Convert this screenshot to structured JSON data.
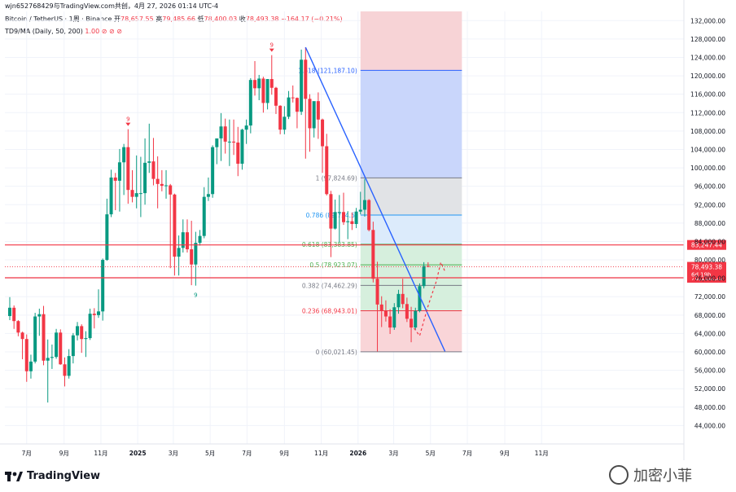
{
  "header": {
    "top_line": "wjn652768429与TradingView.com共创，4月 27, 2026 01:14 UTC-4",
    "symbol": "Bitcoin / TetherUS · 1周 · Binance",
    "open_label": "开",
    "open": "78,657.55",
    "high_label": "高",
    "high": "79,485.66",
    "low_label": "低",
    "low": "78,400.03",
    "close_label": "收",
    "close": "78,493.38",
    "change": "−164.17 (−0.21%)",
    "indicator": "TD9/MA (Daily, 50, 200)",
    "indicator_values": "1.00 ⊘ ⊘ ⊘"
  },
  "brand": {
    "logo_text": "TradingView",
    "watermark": "加密小菲"
  },
  "colors": {
    "up": "#089981",
    "down": "#f23645",
    "trend": "#2962ff",
    "level_line": "#f23645",
    "fib_top_zone": "#f7d3d6",
    "fib_blue_zone": "#c9d6fb",
    "fib_gray_zone": "#e1e3e6",
    "fib_light_blue": "#dcebfb",
    "fib_green_zone": "#d6efdd",
    "fib_red_zone": "#f9d5d8"
  },
  "chart_data": {
    "type": "candlestick",
    "timeframe": "1W",
    "y_axis": {
      "ylim": [
        40000,
        134000
      ],
      "ticks": [
        "44,000.00",
        "48,000.00",
        "52,000.00",
        "56,000.00",
        "60,000.00",
        "64,000.00",
        "68,000.00",
        "72,000.00",
        "76,000.00",
        "80,000.00",
        "84,000.00",
        "88,000.00",
        "92,000.00",
        "96,000.00",
        "100,000.00",
        "104,000.00",
        "108,000.00",
        "112,000.00",
        "116,000.00",
        "120,000.00",
        "124,000.00",
        "128,000.00",
        "132,000.00"
      ],
      "tick_values": [
        44000,
        48000,
        52000,
        56000,
        60000,
        64000,
        68000,
        72000,
        76000,
        80000,
        84000,
        88000,
        92000,
        96000,
        100000,
        104000,
        108000,
        112000,
        116000,
        120000,
        124000,
        128000,
        132000
      ]
    },
    "x_axis": {
      "ticks": [
        "7月",
        "9月",
        "11月",
        "2025",
        "3月",
        "5月",
        "7月",
        "9月",
        "11月",
        "2026",
        "3月",
        "5月",
        "7月",
        "9月",
        "11月"
      ],
      "tick_dates": [
        "2024-07-01",
        "2024-09-01",
        "2024-11-01",
        "2025-01-01",
        "2025-03-01",
        "2025-05-01",
        "2025-07-01",
        "2025-09-01",
        "2025-11-01",
        "2026-01-01",
        "2026-03-01",
        "2026-05-01",
        "2026-07-01",
        "2026-09-01",
        "2026-11-01"
      ]
    },
    "candles": [
      [
        "2024-06-03",
        67800,
        71900,
        66900,
        69600
      ],
      [
        "2024-06-10",
        69600,
        70100,
        65000,
        66700
      ],
      [
        "2024-06-17",
        66700,
        66900,
        63400,
        64200
      ],
      [
        "2024-06-24",
        64200,
        64400,
        58400,
        62800
      ],
      [
        "2024-07-01",
        62800,
        63800,
        53500,
        55800
      ],
      [
        "2024-07-08",
        55800,
        59400,
        54200,
        57900
      ],
      [
        "2024-07-15",
        57900,
        68500,
        57500,
        67700
      ],
      [
        "2024-07-22",
        67700,
        69400,
        63500,
        68200
      ],
      [
        "2024-07-29",
        68200,
        70000,
        57100,
        58100
      ],
      [
        "2024-08-05",
        58100,
        62700,
        49000,
        58700
      ],
      [
        "2024-08-12",
        58700,
        61600,
        56300,
        58900
      ],
      [
        "2024-08-19",
        58900,
        65000,
        58500,
        64200
      ],
      [
        "2024-08-26",
        64200,
        64900,
        57200,
        57300
      ],
      [
        "2024-09-02",
        57300,
        58800,
        52500,
        54800
      ],
      [
        "2024-09-09",
        54800,
        60600,
        54200,
        59100
      ],
      [
        "2024-09-16",
        59100,
        64100,
        57500,
        63600
      ],
      [
        "2024-09-23",
        63600,
        66500,
        62500,
        65600
      ],
      [
        "2024-09-30",
        65600,
        66000,
        59800,
        62800
      ],
      [
        "2024-10-07",
        62800,
        64500,
        58900,
        63000
      ],
      [
        "2024-10-14",
        63000,
        69400,
        62600,
        68300
      ],
      [
        "2024-10-21",
        68300,
        69500,
        65100,
        68000
      ],
      [
        "2024-10-28",
        68000,
        73600,
        67400,
        68800
      ],
      [
        "2024-11-04",
        68800,
        80300,
        66800,
        80000
      ],
      [
        "2024-11-11",
        80000,
        93300,
        79800,
        89900
      ],
      [
        "2024-11-18",
        89900,
        99600,
        89300,
        97900
      ],
      [
        "2024-11-25",
        97900,
        98900,
        90800,
        97200
      ],
      [
        "2024-12-02",
        97200,
        104100,
        90500,
        101200
      ],
      [
        "2024-12-09",
        101200,
        105200,
        94100,
        104500
      ],
      [
        "2024-12-16",
        104500,
        108400,
        92200,
        95200
      ],
      [
        "2024-12-23",
        95200,
        99500,
        92500,
        93700
      ],
      [
        "2024-12-30",
        93700,
        102700,
        91200,
        94500
      ],
      [
        "2025-01-06",
        94500,
        102400,
        89300,
        94500
      ],
      [
        "2025-01-13",
        94500,
        106400,
        92000,
        101100
      ],
      [
        "2025-01-20",
        101100,
        109600,
        98900,
        101400
      ],
      [
        "2025-01-27",
        101400,
        106500,
        96200,
        97600
      ],
      [
        "2025-02-03",
        97600,
        102500,
        91200,
        96500
      ],
      [
        "2025-02-10",
        96500,
        99500,
        94900,
        96100
      ],
      [
        "2025-02-17",
        96100,
        99500,
        93300,
        96200
      ],
      [
        "2025-02-24",
        96200,
        96500,
        78200,
        94200
      ],
      [
        "2025-03-03",
        94200,
        94400,
        76600,
        80700
      ],
      [
        "2025-03-10",
        80700,
        85300,
        76600,
        82600
      ],
      [
        "2025-03-17",
        82600,
        88800,
        81600,
        86000
      ],
      [
        "2025-03-24",
        86000,
        88800,
        81600,
        82300
      ],
      [
        "2025-03-31",
        82300,
        88500,
        74500,
        79000
      ],
      [
        "2025-04-07",
        79000,
        86100,
        74400,
        83700
      ],
      [
        "2025-04-14",
        83700,
        86500,
        83100,
        85200
      ],
      [
        "2025-04-21",
        85200,
        95800,
        84700,
        93700
      ],
      [
        "2025-04-28",
        93700,
        97900,
        92800,
        94300
      ],
      [
        "2025-05-05",
        94300,
        104900,
        93500,
        104500
      ],
      [
        "2025-05-12",
        104500,
        105800,
        100800,
        106400
      ],
      [
        "2025-05-19",
        106400,
        111900,
        101500,
        109000
      ],
      [
        "2025-05-26",
        109000,
        110700,
        103100,
        105700
      ],
      [
        "2025-06-02",
        105700,
        110500,
        100400,
        105700
      ],
      [
        "2025-06-09",
        105700,
        110500,
        102800,
        105500
      ],
      [
        "2025-06-16",
        105500,
        108900,
        98200,
        100900
      ],
      [
        "2025-06-23",
        100900,
        108500,
        99600,
        108300
      ],
      [
        "2025-06-30",
        108300,
        110500,
        105200,
        109200
      ],
      [
        "2025-07-07",
        109200,
        119500,
        107500,
        119100
      ],
      [
        "2025-07-14",
        119100,
        123200,
        115700,
        117300
      ],
      [
        "2025-07-21",
        117300,
        120200,
        114700,
        119400
      ],
      [
        "2025-07-28",
        119400,
        119800,
        112000,
        114100
      ],
      [
        "2025-08-04",
        114100,
        119300,
        112700,
        119300
      ],
      [
        "2025-08-11",
        119300,
        124500,
        115900,
        117400
      ],
      [
        "2025-08-18",
        117400,
        117600,
        111700,
        113500
      ],
      [
        "2025-08-25",
        113500,
        113600,
        107300,
        108300
      ],
      [
        "2025-09-01",
        108300,
        113400,
        107300,
        111100
      ],
      [
        "2025-09-08",
        111100,
        116700,
        110600,
        115300
      ],
      [
        "2025-09-15",
        115300,
        117900,
        114200,
        115200
      ],
      [
        "2025-09-22",
        115200,
        115300,
        108600,
        112200
      ],
      [
        "2025-09-29",
        112200,
        125700,
        111500,
        123500
      ],
      [
        "2025-10-06",
        123500,
        126200,
        102000,
        115000
      ],
      [
        "2025-10-13",
        115000,
        116000,
        103500,
        108600
      ],
      [
        "2025-10-20",
        108600,
        114000,
        106600,
        114500
      ],
      [
        "2025-10-27",
        114500,
        116400,
        106300,
        110500
      ],
      [
        "2025-11-03",
        110500,
        110700,
        98900,
        104700
      ],
      [
        "2025-11-10",
        104700,
        107400,
        94000,
        94300
      ],
      [
        "2025-11-17",
        94300,
        95000,
        80600,
        86800
      ],
      [
        "2025-11-24",
        86800,
        93100,
        86600,
        90400
      ],
      [
        "2025-12-01",
        90400,
        94100,
        83800,
        90400
      ],
      [
        "2025-12-08",
        90400,
        94600,
        87600,
        88200
      ],
      [
        "2025-12-15",
        88200,
        90600,
        84500,
        88400
      ],
      [
        "2025-12-22",
        88400,
        90300,
        86500,
        87800
      ],
      [
        "2025-12-29",
        87800,
        91300,
        86900,
        90500
      ],
      [
        "2026-01-05",
        90500,
        94800,
        89900,
        90900
      ],
      [
        "2026-01-12",
        90900,
        97600,
        89400,
        93000
      ],
      [
        "2026-01-19",
        93000,
        93200,
        86200,
        86500
      ],
      [
        "2026-01-26",
        86500,
        88300,
        75100,
        75900
      ],
      [
        "2026-02-02",
        75900,
        79600,
        60100,
        70300
      ],
      [
        "2026-02-09",
        70300,
        72100,
        65400,
        68900
      ],
      [
        "2026-02-16",
        68900,
        71200,
        66600,
        67700
      ],
      [
        "2026-02-23",
        67700,
        69300,
        63900,
        65300
      ],
      [
        "2026-03-02",
        65300,
        70600,
        64800,
        69700
      ],
      [
        "2026-03-09",
        69700,
        73500,
        68300,
        72600
      ],
      [
        "2026-03-16",
        72600,
        75900,
        69500,
        70400
      ],
      [
        "2026-03-23",
        70400,
        71800,
        66500,
        67200
      ],
      [
        "2026-03-30",
        67200,
        69800,
        62100,
        65300
      ],
      [
        "2026-04-06",
        65300,
        69600,
        64700,
        68900
      ],
      [
        "2026-04-13",
        68900,
        74900,
        68600,
        74300
      ],
      [
        "2026-04-20",
        74300,
        79500,
        73800,
        78657.55
      ],
      [
        "2026-04-27",
        78657.55,
        79485.66,
        78400.03,
        78493.38
      ]
    ],
    "td_marks": [
      {
        "date": "2024-12-16",
        "text": "9",
        "position": "above",
        "color": "#f23645"
      },
      {
        "date": "2025-08-11",
        "text": "9",
        "position": "above",
        "color": "#f23645"
      },
      {
        "date": "2025-04-07",
        "text": "9",
        "position": "below",
        "color": "#089981"
      }
    ],
    "horizontal_levels": [
      {
        "price": 83247.44,
        "label": "83,247.44"
      },
      {
        "price": 76110.33,
        "label": "76,110.33"
      }
    ],
    "price_tag": {
      "price": 78493.38,
      "label": "78,493.38",
      "countdown": "6d 19h"
    },
    "trendline": {
      "from": [
        "2025-10-06",
        126200
      ],
      "to": [
        "2026-05-25",
        60100
      ]
    },
    "fib": {
      "start_date": "2026-01-05",
      "end_date": "2026-06-22",
      "levels": [
        {
          "ratio": "0",
          "value": 60021.45,
          "label": "0 (60,021.45)",
          "color": "#787b86"
        },
        {
          "ratio": "0.236",
          "value": 68943.01,
          "label": "0.236 (68,943.01)",
          "color": "#f23645"
        },
        {
          "ratio": "0.382",
          "value": 74462.29,
          "label": "0.382 (74,462.29)",
          "color": "#787b86"
        },
        {
          "ratio": "0.5",
          "value": 78923.07,
          "label": "0.5 (78,923.07)",
          "color": "#4caf50"
        },
        {
          "ratio": "0.618",
          "value": 83383.85,
          "label": "0.618 (83,383.85)",
          "color": "#4caf50"
        },
        {
          "ratio": "0.786",
          "value": 89734.5,
          "label": "0.786 (89,734.5)",
          "color": "#2196f3"
        },
        {
          "ratio": "1",
          "value": 97824.69,
          "label": "1 (97,824.69)",
          "color": "#787b86"
        },
        {
          "ratio": "1.618",
          "value": 121187.1,
          "label": "1.618 (121,187.10)",
          "color": "#2962ff"
        }
      ]
    },
    "projection_path": [
      [
        "2026-03-30",
        66000
      ],
      [
        "2026-04-13",
        63500
      ],
      [
        "2026-04-27",
        70000
      ],
      [
        "2026-05-11",
        75500
      ],
      [
        "2026-05-18",
        79500
      ],
      [
        "2026-05-25",
        77500
      ]
    ]
  }
}
